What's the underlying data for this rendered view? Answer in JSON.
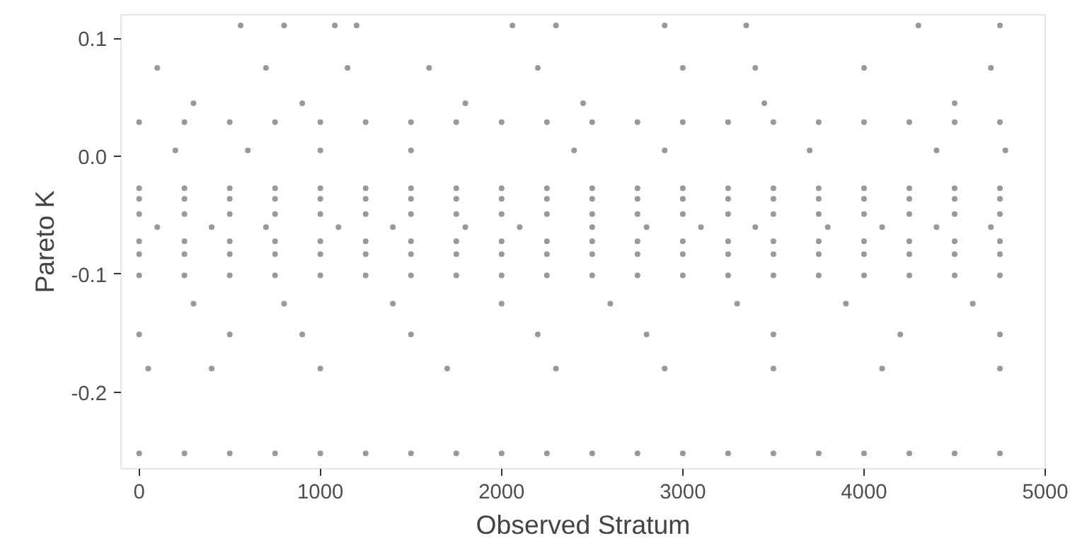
{
  "chart_data": {
    "type": "scatter",
    "xlabel": "Observed Stratum",
    "ylabel": "Pareto K",
    "xlim": [
      -100,
      5000
    ],
    "ylim": [
      -0.265,
      0.12
    ],
    "xticks": [
      0,
      1000,
      2000,
      3000,
      4000,
      5000
    ],
    "yticks": [
      0.1,
      {
        "value": 0.0,
        "label": "0.0"
      },
      -0.1,
      -0.2
    ],
    "grid": false,
    "marker": "circle",
    "series": [
      {
        "color": "#999999",
        "x": [
          560,
          800,
          1080,
          1200,
          2060,
          2300,
          2900,
          3350,
          4300,
          4750
        ],
        "values": [
          0.111,
          0.111,
          0.111,
          0.111,
          0.111,
          0.111,
          0.111,
          0.111,
          0.111,
          0.111
        ]
      },
      {
        "color": "#999999",
        "x": [
          100,
          700,
          1150,
          1600,
          2200,
          3000,
          3400,
          4000,
          4700
        ],
        "values": [
          0.075,
          0.075,
          0.075,
          0.075,
          0.075,
          0.075,
          0.075,
          0.075,
          0.075
        ]
      },
      {
        "color": "#999999",
        "x": [
          300,
          900,
          1800,
          2450,
          3450,
          4500
        ],
        "values": [
          0.045,
          0.045,
          0.045,
          0.045,
          0.045,
          0.045
        ]
      },
      {
        "color": "#999999",
        "x": [
          0,
          250,
          500,
          750,
          1000,
          1250,
          1500,
          1750,
          2000,
          2250,
          2500,
          2750,
          3000,
          3250,
          3500,
          3750,
          4000,
          4250,
          4500,
          4750
        ],
        "values": [
          0.029,
          0.029,
          0.029,
          0.029,
          0.029,
          0.029,
          0.029,
          0.029,
          0.029,
          0.029,
          0.029,
          0.029,
          0.029,
          0.029,
          0.029,
          0.029,
          0.029,
          0.029,
          0.029,
          0.029
        ]
      },
      {
        "color": "#999999",
        "x": [
          200,
          600,
          1000,
          1500,
          2400,
          2900,
          3700,
          4400,
          4780
        ],
        "values": [
          0.005,
          0.005,
          0.005,
          0.005,
          0.005,
          0.005,
          0.005,
          0.005,
          0.005
        ]
      },
      {
        "color": "#999999",
        "x": [
          0,
          250,
          500,
          750,
          1000,
          1250,
          1500,
          1750,
          2000,
          2250,
          2500,
          2750,
          3000,
          3250,
          3500,
          3750,
          4000,
          4250,
          4500,
          4750
        ],
        "values": [
          -0.027,
          -0.027,
          -0.027,
          -0.027,
          -0.027,
          -0.027,
          -0.027,
          -0.027,
          -0.027,
          -0.027,
          -0.027,
          -0.027,
          -0.027,
          -0.027,
          -0.027,
          -0.027,
          -0.027,
          -0.027,
          -0.027,
          -0.027
        ]
      },
      {
        "color": "#999999",
        "x": [
          0,
          250,
          500,
          750,
          1000,
          1250,
          1500,
          1750,
          2000,
          2250,
          2500,
          2750,
          3000,
          3250,
          3500,
          3750,
          4000,
          4250,
          4500,
          4750
        ],
        "values": [
          -0.036,
          -0.036,
          -0.036,
          -0.036,
          -0.036,
          -0.036,
          -0.036,
          -0.036,
          -0.036,
          -0.036,
          -0.036,
          -0.036,
          -0.036,
          -0.036,
          -0.036,
          -0.036,
          -0.036,
          -0.036,
          -0.036,
          -0.036
        ]
      },
      {
        "color": "#999999",
        "x": [
          0,
          250,
          500,
          750,
          1000,
          1250,
          1500,
          1750,
          2000,
          2250,
          2500,
          2750,
          3000,
          3250,
          3500,
          3750,
          4000,
          4250,
          4500,
          4750
        ],
        "values": [
          -0.049,
          -0.049,
          -0.049,
          -0.049,
          -0.049,
          -0.049,
          -0.049,
          -0.049,
          -0.049,
          -0.049,
          -0.049,
          -0.049,
          -0.049,
          -0.049,
          -0.049,
          -0.049,
          -0.049,
          -0.049,
          -0.049,
          -0.049
        ]
      },
      {
        "color": "#999999",
        "x": [
          100,
          400,
          700,
          1100,
          1400,
          1800,
          2100,
          2500,
          2800,
          3100,
          3400,
          3800,
          4100,
          4400,
          4700
        ],
        "values": [
          -0.06,
          -0.06,
          -0.06,
          -0.06,
          -0.06,
          -0.06,
          -0.06,
          -0.06,
          -0.06,
          -0.06,
          -0.06,
          -0.06,
          -0.06,
          -0.06,
          -0.06
        ]
      },
      {
        "color": "#999999",
        "x": [
          0,
          250,
          500,
          750,
          1000,
          1250,
          1500,
          1750,
          2000,
          2250,
          2500,
          2750,
          3000,
          3250,
          3500,
          3750,
          4000,
          4250,
          4500,
          4750
        ],
        "values": [
          -0.072,
          -0.072,
          -0.072,
          -0.072,
          -0.072,
          -0.072,
          -0.072,
          -0.072,
          -0.072,
          -0.072,
          -0.072,
          -0.072,
          -0.072,
          -0.072,
          -0.072,
          -0.072,
          -0.072,
          -0.072,
          -0.072,
          -0.072
        ]
      },
      {
        "color": "#999999",
        "x": [
          0,
          250,
          500,
          750,
          1000,
          1250,
          1500,
          1750,
          2000,
          2250,
          2500,
          2750,
          3000,
          3250,
          3500,
          3750,
          4000,
          4250,
          4500,
          4750
        ],
        "values": [
          -0.083,
          -0.083,
          -0.083,
          -0.083,
          -0.083,
          -0.083,
          -0.083,
          -0.083,
          -0.083,
          -0.083,
          -0.083,
          -0.083,
          -0.083,
          -0.083,
          -0.083,
          -0.083,
          -0.083,
          -0.083,
          -0.083,
          -0.083
        ]
      },
      {
        "color": "#999999",
        "x": [
          0,
          250,
          500,
          750,
          1000,
          1250,
          1500,
          1750,
          2000,
          2250,
          2500,
          2750,
          3000,
          3250,
          3500,
          3750,
          4000,
          4250,
          4500,
          4750
        ],
        "values": [
          -0.101,
          -0.101,
          -0.101,
          -0.101,
          -0.101,
          -0.101,
          -0.101,
          -0.101,
          -0.101,
          -0.101,
          -0.101,
          -0.101,
          -0.101,
          -0.101,
          -0.101,
          -0.101,
          -0.101,
          -0.101,
          -0.101,
          -0.101
        ]
      },
      {
        "color": "#999999",
        "x": [
          300,
          800,
          1400,
          2000,
          2600,
          3300,
          3900,
          4600
        ],
        "values": [
          -0.125,
          -0.125,
          -0.125,
          -0.125,
          -0.125,
          -0.125,
          -0.125,
          -0.125
        ]
      },
      {
        "color": "#999999",
        "x": [
          0,
          500,
          900,
          1500,
          2200,
          2800,
          3500,
          4200,
          4750
        ],
        "values": [
          -0.151,
          -0.151,
          -0.151,
          -0.151,
          -0.151,
          -0.151,
          -0.151,
          -0.151,
          -0.151
        ]
      },
      {
        "color": "#999999",
        "x": [
          50,
          400,
          1000,
          1700,
          2300,
          2900,
          3500,
          4100,
          4750
        ],
        "values": [
          -0.18,
          -0.18,
          -0.18,
          -0.18,
          -0.18,
          -0.18,
          -0.18,
          -0.18,
          -0.18
        ]
      },
      {
        "color": "#999999",
        "x": [
          0,
          250,
          500,
          750,
          1000,
          1250,
          1500,
          1750,
          2000,
          2250,
          2500,
          2750,
          3000,
          3250,
          3500,
          3750,
          4000,
          4250,
          4500,
          4750
        ],
        "values": [
          -0.252,
          -0.252,
          -0.252,
          -0.252,
          -0.252,
          -0.252,
          -0.252,
          -0.252,
          -0.252,
          -0.252,
          -0.252,
          -0.252,
          -0.252,
          -0.252,
          -0.252,
          -0.252,
          -0.252,
          -0.252,
          -0.252,
          -0.252
        ]
      }
    ]
  }
}
